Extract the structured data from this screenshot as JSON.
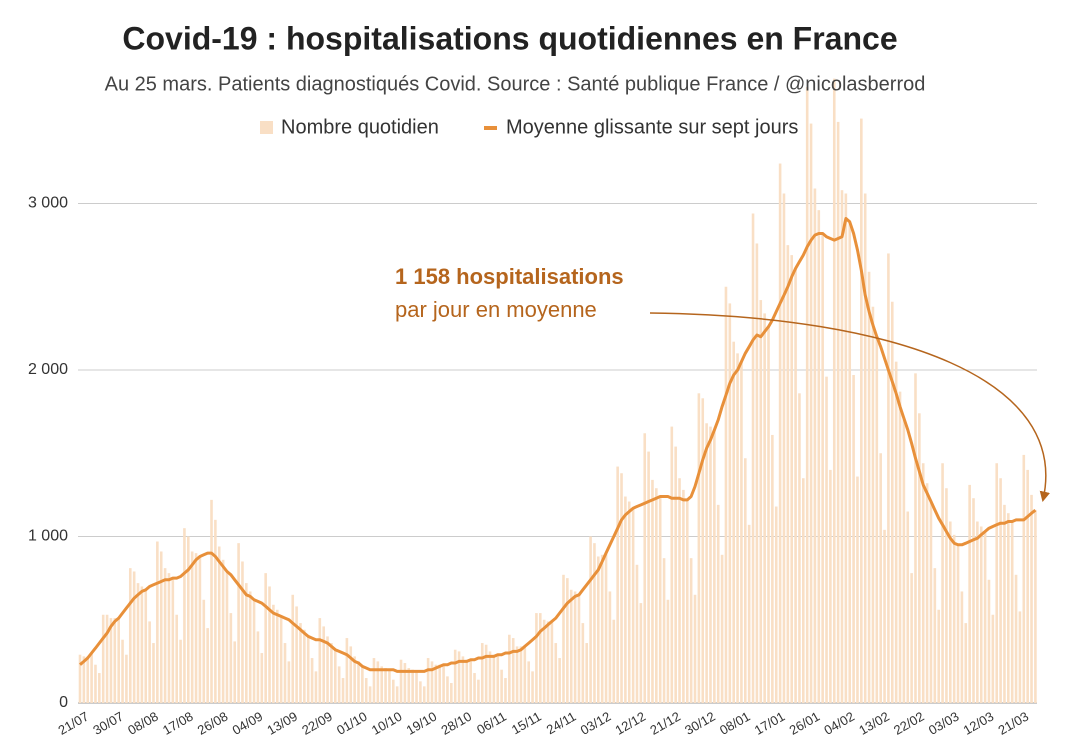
{
  "chart_data": {
    "type": "bar",
    "title": "Covid-19 : hospitalisations quotidiennes en France",
    "subtitle": "Au 25 mars. Patients diagnostiqués Covid. Source : Santé publique France / @nicolasberrod",
    "categories": [
      "21/07",
      null,
      null,
      null,
      null,
      null,
      null,
      null,
      null,
      "30/07",
      null,
      null,
      null,
      null,
      null,
      null,
      null,
      null,
      "08/08",
      null,
      null,
      null,
      null,
      null,
      null,
      null,
      null,
      "17/08",
      null,
      null,
      null,
      null,
      null,
      null,
      null,
      null,
      "26/08",
      null,
      null,
      null,
      null,
      null,
      null,
      null,
      null,
      "04/09",
      null,
      null,
      null,
      null,
      null,
      null,
      null,
      null,
      "13/09",
      null,
      null,
      null,
      null,
      null,
      null,
      null,
      null,
      "22/09",
      null,
      null,
      null,
      null,
      null,
      null,
      null,
      null,
      "01/10",
      null,
      null,
      null,
      null,
      null,
      null,
      null,
      null,
      "10/10",
      null,
      null,
      null,
      null,
      null,
      null,
      null,
      null,
      "19/10",
      null,
      null,
      null,
      null,
      null,
      null,
      null,
      null,
      "28/10",
      null,
      null,
      null,
      null,
      null,
      null,
      null,
      null,
      "06/11",
      null,
      null,
      null,
      null,
      null,
      null,
      null,
      null,
      "15/11",
      null,
      null,
      null,
      null,
      null,
      null,
      null,
      null,
      "24/11",
      null,
      null,
      null,
      null,
      null,
      null,
      null,
      null,
      "03/12",
      null,
      null,
      null,
      null,
      null,
      null,
      null,
      null,
      "12/12",
      null,
      null,
      null,
      null,
      null,
      null,
      null,
      null,
      "21/12",
      null,
      null,
      null,
      null,
      null,
      null,
      null,
      null,
      "30/12",
      null,
      null,
      null,
      null,
      null,
      null,
      null,
      null,
      "08/01",
      null,
      null,
      null,
      null,
      null,
      null,
      null,
      null,
      "17/01",
      null,
      null,
      null,
      null,
      null,
      null,
      null,
      null,
      "26/01",
      null,
      null,
      null,
      null,
      null,
      null,
      null,
      null,
      "04/02",
      null,
      null,
      null,
      null,
      null,
      null,
      null,
      null,
      "13/02",
      null,
      null,
      null,
      null,
      null,
      null,
      null,
      null,
      "22/02",
      null,
      null,
      null,
      null,
      null,
      null,
      null,
      null,
      "03/03",
      null,
      null,
      null,
      null,
      null,
      null,
      null,
      null,
      "12/03",
      null,
      null,
      null,
      null,
      null,
      null,
      null,
      null,
      "21/03",
      null,
      null,
      null,
      null
    ],
    "series": [
      {
        "name": "Nombre quotidien",
        "type": "bar",
        "color": "#f9dfc5",
        "values": [
          290,
          280,
          280,
          300,
          230,
          180,
          530,
          530,
          510,
          510,
          510,
          380,
          290,
          810,
          790,
          720,
          700,
          680,
          490,
          360,
          970,
          910,
          810,
          780,
          750,
          530,
          380,
          1050,
          1000,
          910,
          900,
          880,
          620,
          450,
          1220,
          1100,
          940,
          860,
          790,
          540,
          370,
          960,
          850,
          720,
          670,
          620,
          430,
          300,
          780,
          700,
          590,
          560,
          520,
          360,
          250,
          650,
          580,
          480,
          440,
          400,
          270,
          190,
          510,
          460,
          400,
          360,
          320,
          220,
          150,
          390,
          340,
          280,
          250,
          220,
          150,
          100,
          270,
          250,
          220,
          210,
          200,
          140,
          100,
          260,
          240,
          210,
          200,
          190,
          130,
          100,
          270,
          250,
          230,
          230,
          230,
          160,
          120,
          320,
          310,
          280,
          260,
          260,
          180,
          140,
          360,
          350,
          310,
          290,
          290,
          200,
          150,
          410,
          390,
          340,
          340,
          340,
          250,
          190,
          540,
          540,
          500,
          490,
          490,
          360,
          270,
          770,
          750,
          680,
          670,
          650,
          480,
          360,
          1000,
          960,
          880,
          890,
          900,
          670,
          500,
          1420,
          1380,
          1240,
          1210,
          1170,
          830,
          600,
          1620,
          1510,
          1340,
          1290,
          1240,
          870,
          620,
          1660,
          1540,
          1350,
          1280,
          1220,
          870,
          650,
          1860,
          1830,
          1680,
          1660,
          1640,
          1190,
          890,
          2500,
          2400,
          2170,
          2100,
          2050,
          1470,
          1070,
          2940,
          2760,
          2420,
          2340,
          2260,
          1610,
          1180,
          3240,
          3060,
          2750,
          2690,
          2610,
          1860,
          1350,
          3700,
          3480,
          3090,
          2960,
          2820,
          1960,
          1400,
          3750,
          3490,
          3080,
          3060,
          2890,
          1970,
          1360,
          3510,
          3060,
          2590,
          2380,
          2200,
          1500,
          1040,
          2700,
          2410,
          2050,
          1870,
          1710,
          1150,
          780,
          1980,
          1740,
          1440,
          1320,
          1210,
          810,
          560,
          1440,
          1290,
          1090,
          1010,
          950,
          670,
          480,
          1310,
          1230,
          1090,
          1060,
          1030,
          740,
          530,
          1440,
          1350,
          1190,
          1140,
          1090,
          770,
          550,
          1490,
          1400,
          1250,
          1160
        ]
      },
      {
        "name": "Moyenne glissante sur sept jours",
        "type": "line",
        "color": "#e8903a",
        "values": [
          230,
          250,
          270,
          300,
          330,
          360,
          390,
          420,
          460,
          490,
          510,
          540,
          570,
          600,
          630,
          650,
          670,
          680,
          700,
          710,
          720,
          730,
          740,
          740,
          750,
          750,
          760,
          780,
          800,
          830,
          860,
          880,
          890,
          900,
          900,
          880,
          850,
          820,
          790,
          770,
          740,
          710,
          680,
          650,
          640,
          620,
          610,
          600,
          580,
          560,
          540,
          530,
          520,
          510,
          500,
          480,
          460,
          440,
          420,
          400,
          390,
          380,
          380,
          370,
          360,
          340,
          320,
          310,
          300,
          290,
          270,
          250,
          240,
          220,
          210,
          200,
          200,
          200,
          200,
          200,
          200,
          200,
          190,
          190,
          190,
          190,
          190,
          190,
          190,
          190,
          200,
          200,
          210,
          220,
          230,
          230,
          240,
          240,
          250,
          250,
          250,
          260,
          260,
          270,
          270,
          280,
          280,
          280,
          290,
          290,
          300,
          300,
          310,
          310,
          320,
          340,
          360,
          380,
          400,
          430,
          450,
          470,
          490,
          510,
          540,
          570,
          600,
          620,
          640,
          650,
          680,
          710,
          740,
          770,
          800,
          850,
          900,
          950,
          1000,
          1050,
          1100,
          1130,
          1150,
          1170,
          1180,
          1190,
          1200,
          1210,
          1220,
          1230,
          1240,
          1240,
          1240,
          1230,
          1230,
          1230,
          1220,
          1220,
          1240,
          1300,
          1380,
          1460,
          1530,
          1580,
          1640,
          1700,
          1780,
          1850,
          1920,
          1970,
          2000,
          2050,
          2100,
          2140,
          2180,
          2210,
          2200,
          2230,
          2260,
          2300,
          2350,
          2400,
          2450,
          2500,
          2560,
          2610,
          2650,
          2690,
          2740,
          2780,
          2810,
          2820,
          2820,
          2800,
          2790,
          2780,
          2790,
          2800,
          2910,
          2890,
          2820,
          2720,
          2600,
          2450,
          2350,
          2270,
          2200,
          2140,
          2070,
          2000,
          1930,
          1860,
          1780,
          1710,
          1640,
          1560,
          1470,
          1390,
          1310,
          1260,
          1210,
          1160,
          1110,
          1070,
          1030,
          990,
          960,
          950,
          950,
          960,
          970,
          980,
          990,
          1010,
          1030,
          1050,
          1060,
          1070,
          1080,
          1080,
          1090,
          1090,
          1100,
          1100,
          1100,
          1120,
          1140,
          1158
        ]
      }
    ],
    "ylim": [
      0,
      4000
    ],
    "yticks": [
      0,
      {
        "value": 1000,
        "label": "1 000"
      },
      {
        "value": 2000,
        "label": "2 000"
      },
      {
        "value": 3000,
        "label": "3 000"
      }
    ],
    "grid": true,
    "annotation": {
      "lines": [
        "1 158 hospitalisations",
        "par jour en moyenne"
      ],
      "color": "#b5651d"
    }
  }
}
